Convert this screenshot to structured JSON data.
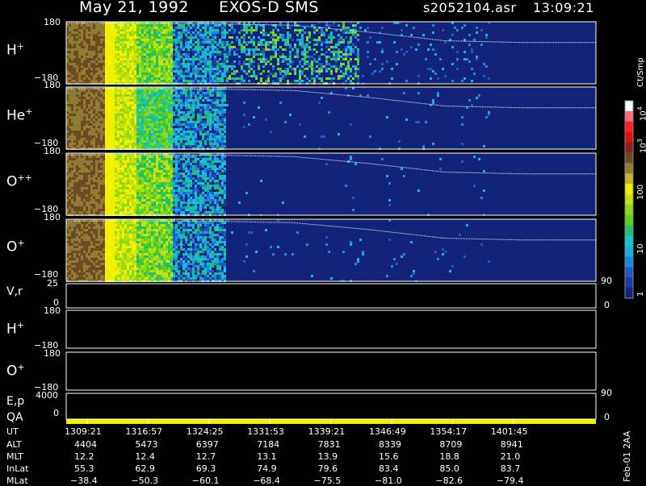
{
  "header": {
    "date": "May 21, 1992",
    "instrument": "EXOS-D SMS",
    "file": "s2052104.asr",
    "time": "13:09:21"
  },
  "side_note": "Feb-01 2AA",
  "colorbar": {
    "unit_label": "Ct/Smp",
    "tick_labels": [
      "1",
      "10",
      "100",
      "10",
      "3",
      "10",
      "4"
    ],
    "ticks": [
      {
        "label": "1",
        "exp": ""
      },
      {
        "label": "10",
        "exp": ""
      },
      {
        "label": "100",
        "exp": ""
      },
      {
        "label": "10",
        "exp": "3"
      },
      {
        "label": "10",
        "exp": "4"
      }
    ],
    "colors": [
      "#14237a",
      "#1c3aa0",
      "#1e57c8",
      "#1c86dc",
      "#18b0e0",
      "#12c8c8",
      "#20c070",
      "#58d020",
      "#8ed818",
      "#c8e010",
      "#f0f000",
      "#c8b428",
      "#8e7c30",
      "#6e4a24",
      "#8c2020",
      "#e01010",
      "#ff2020",
      "#ff7070",
      "#ffffff"
    ]
  },
  "panels": [
    {
      "id": "h-plus",
      "label": "H",
      "sup": "+",
      "ytop": "180",
      "ybot": "−180"
    },
    {
      "id": "he-plus",
      "label": "He",
      "sup": "+",
      "ytop": "180",
      "ybot": "−180"
    },
    {
      "id": "o-plus-plus",
      "label": "O",
      "sup": "++",
      "ytop": "180",
      "ybot": "−180"
    },
    {
      "id": "o-plus",
      "label": "O",
      "sup": "+",
      "ytop": "180",
      "ybot": "−180"
    }
  ],
  "vr_panel": {
    "label": "V,r",
    "ytop": "25",
    "ybot": "0",
    "right_top": "90",
    "right_bot": "0"
  },
  "lower_panels": [
    {
      "id": "h-plus-angle",
      "label": "H",
      "sup": "+",
      "ytop": "180",
      "ybot": "−180"
    },
    {
      "id": "o-plus-angle",
      "label": "O",
      "sup": "+",
      "ytop": "180",
      "ybot": "−180"
    }
  ],
  "ep_panel": {
    "label": "E,p",
    "ytop": "4000",
    "ybot": "0",
    "right_top": "90",
    "right_bot": "0"
  },
  "qa_panel": {
    "label": "QA"
  },
  "chart_data": {
    "type": "heatmap",
    "title": "May 21, 1992   EXOS-D SMS",
    "xlabel": "UT",
    "x_ticks": [
      "1309:21",
      "1316:57",
      "1324:25",
      "1331:53",
      "1339:21",
      "1346:49",
      "1354:17",
      "1401:45"
    ],
    "ylim": [
      -180,
      180
    ],
    "colorbar_range": [
      1,
      10000
    ],
    "colorbar_scale": "log",
    "series": [
      {
        "name": "H+",
        "pitch_angle_trace": [
          170,
          170,
          168,
          160,
          120,
          70,
          60,
          60
        ]
      },
      {
        "name": "He+",
        "pitch_angle_trace": [
          170,
          170,
          168,
          160,
          120,
          70,
          60,
          60
        ]
      },
      {
        "name": "O++",
        "pitch_angle_trace": [
          170,
          170,
          168,
          160,
          120,
          70,
          60,
          60
        ]
      },
      {
        "name": "O+",
        "pitch_angle_trace": [
          170,
          170,
          168,
          160,
          120,
          70,
          60,
          60
        ]
      }
    ],
    "ephemeris": [
      {
        "name": "UT",
        "values": [
          "1309:21",
          "1316:57",
          "1324:25",
          "1331:53",
          "1339:21",
          "1346:49",
          "1354:17",
          "1401:45"
        ]
      },
      {
        "name": "ALT",
        "values": [
          "4404",
          "5473",
          "6397",
          "7184",
          "7831",
          "8339",
          "8709",
          "8941"
        ]
      },
      {
        "name": "MLT",
        "values": [
          "12.2",
          "12.4",
          "12.7",
          "13.1",
          "13.9",
          "15.6",
          "18.8",
          "21.0"
        ]
      },
      {
        "name": "InLat",
        "values": [
          "55.3",
          "62.9",
          "69.3",
          "74.9",
          "79.6",
          "83.4",
          "85.0",
          "83.7"
        ]
      },
      {
        "name": "MLat",
        "values": [
          "−38.4",
          "−50.3",
          "−60.1",
          "−68.4",
          "−75.5",
          "−81.0",
          "−82.6",
          "−79.4"
        ]
      }
    ]
  }
}
